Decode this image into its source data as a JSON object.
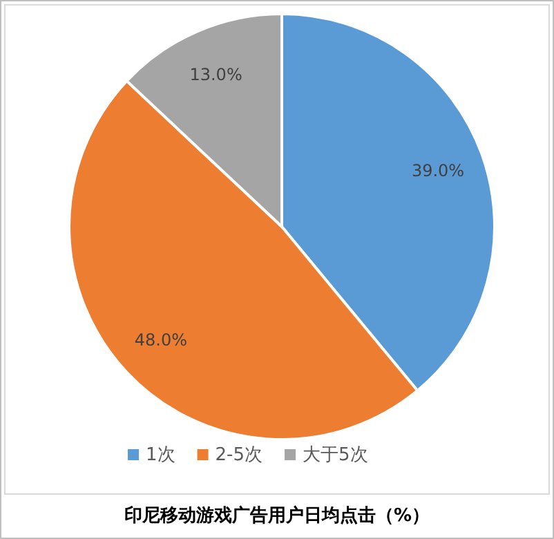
{
  "chart_data": {
    "type": "pie",
    "title": "印尼移动游戏广告用户日均点击（%）",
    "categories": [
      "1次",
      "2-5次",
      "大于5次"
    ],
    "values": [
      39.0,
      48.0,
      13.0
    ],
    "value_labels": [
      "39.0%",
      "48.0%",
      "13.0%"
    ],
    "colors": [
      "#5b9bd5",
      "#ed7d31",
      "#a5a5a5"
    ],
    "legend": "bottom"
  }
}
